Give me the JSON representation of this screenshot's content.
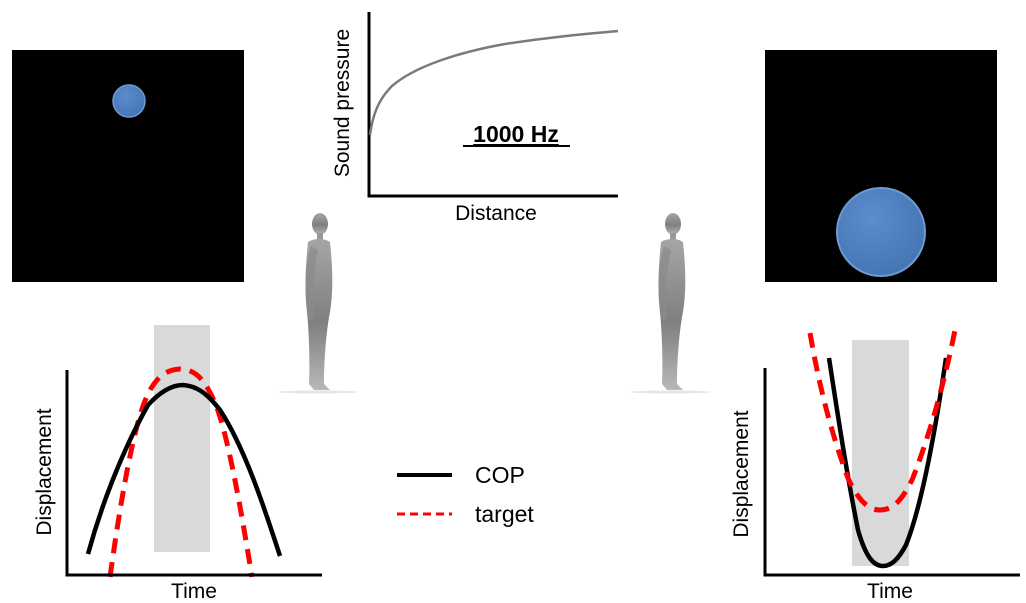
{
  "pressure_chart": {
    "ylabel": "Sound pressure",
    "xlabel": "Distance",
    "frequency_label": "1000 Hz"
  },
  "left_plot": {
    "ylabel": "Displacement",
    "xlabel": "Time"
  },
  "right_plot": {
    "ylabel": "Displacement",
    "xlabel": "Time"
  },
  "legend": {
    "cop_label": "COP",
    "target_label": "target"
  },
  "colors": {
    "screen_bg": "#000000",
    "circle_fill": "#4f7fbf",
    "circle_stroke": "#6e9ad2",
    "cop_line": "#000000",
    "target_line": "#ff0000",
    "highlight_band": "#d9d9d9",
    "pressure_curve": "#7a7a7a",
    "figure_gray": "#8c8c8c"
  },
  "icons": {
    "left_figure": "standing-person-side-view",
    "right_figure": "standing-person-side-view"
  }
}
